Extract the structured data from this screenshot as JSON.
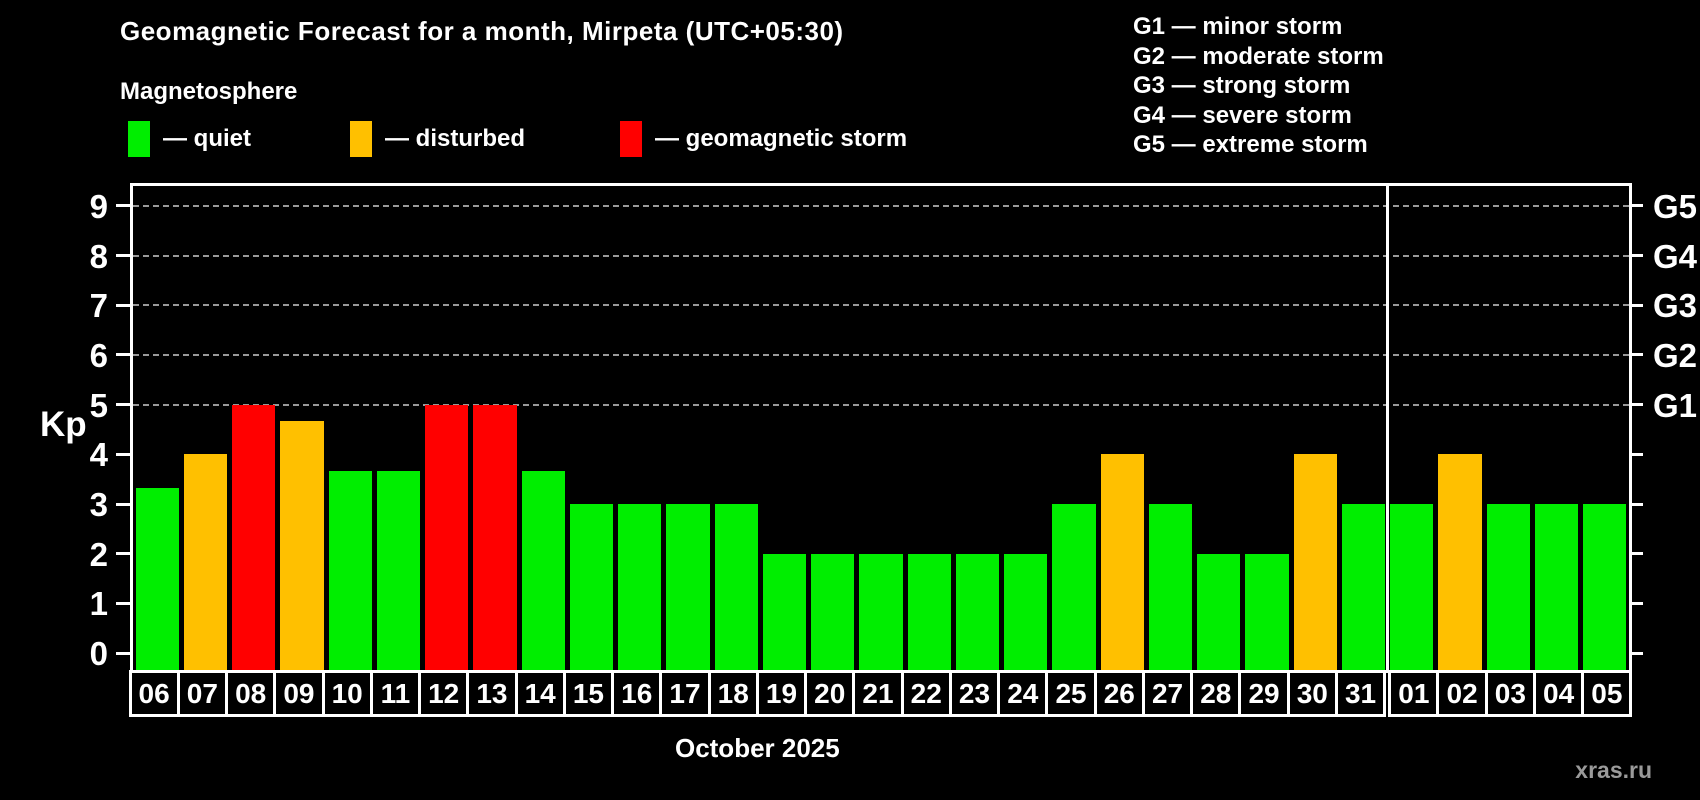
{
  "title": "Geomagnetic Forecast for a month, Mirpeta (UTC+05:30)",
  "subtitle": "Magnetosphere",
  "legend": [
    {
      "status": "quiet",
      "label": "— quiet"
    },
    {
      "status": "disturbed",
      "label": "— disturbed"
    },
    {
      "status": "storm",
      "label": "— geomagnetic storm"
    }
  ],
  "g_legend": [
    "G1 — minor storm",
    "G2 — moderate storm",
    "G3 — strong storm",
    "G4 — severe storm",
    "G5 — extreme storm"
  ],
  "colors": {
    "quiet": "#00ee00",
    "disturbed": "#ffc000",
    "storm": "#ff0000",
    "background": "#000000",
    "text": "#ffffff",
    "grid": "#999999",
    "watermark": "#9a9a9a"
  },
  "watermark": "xras.ru",
  "chart_data": {
    "type": "bar",
    "title": "Geomagnetic Forecast for a month, Mirpeta (UTC+05:30)",
    "xlabel": "October 2025",
    "ylabel": "Kp",
    "ylim": [
      -0.4,
      9.4
    ],
    "yticks": [
      0,
      1,
      2,
      3,
      4,
      5,
      6,
      7,
      8,
      9
    ],
    "gridlines_at": [
      5,
      6,
      7,
      8,
      9
    ],
    "grid": true,
    "right_axis_labels": [
      {
        "kp": 5,
        "label": "G1"
      },
      {
        "kp": 6,
        "label": "G2"
      },
      {
        "kp": 7,
        "label": "G3"
      },
      {
        "kp": 8,
        "label": "G4"
      },
      {
        "kp": 9,
        "label": "G5"
      }
    ],
    "month_boundary_after_index": 25,
    "bars": [
      {
        "day": "06",
        "kp": 3.33,
        "status": "quiet"
      },
      {
        "day": "07",
        "kp": 4.0,
        "status": "disturbed"
      },
      {
        "day": "08",
        "kp": 5.0,
        "status": "storm"
      },
      {
        "day": "09",
        "kp": 4.67,
        "status": "disturbed"
      },
      {
        "day": "10",
        "kp": 3.67,
        "status": "quiet"
      },
      {
        "day": "11",
        "kp": 3.67,
        "status": "quiet"
      },
      {
        "day": "12",
        "kp": 5.0,
        "status": "storm"
      },
      {
        "day": "13",
        "kp": 5.0,
        "status": "storm"
      },
      {
        "day": "14",
        "kp": 3.67,
        "status": "quiet"
      },
      {
        "day": "15",
        "kp": 3.0,
        "status": "quiet"
      },
      {
        "day": "16",
        "kp": 3.0,
        "status": "quiet"
      },
      {
        "day": "17",
        "kp": 3.0,
        "status": "quiet"
      },
      {
        "day": "18",
        "kp": 3.0,
        "status": "quiet"
      },
      {
        "day": "19",
        "kp": 2.0,
        "status": "quiet"
      },
      {
        "day": "20",
        "kp": 2.0,
        "status": "quiet"
      },
      {
        "day": "21",
        "kp": 2.0,
        "status": "quiet"
      },
      {
        "day": "22",
        "kp": 2.0,
        "status": "quiet"
      },
      {
        "day": "23",
        "kp": 2.0,
        "status": "quiet"
      },
      {
        "day": "24",
        "kp": 2.0,
        "status": "quiet"
      },
      {
        "day": "25",
        "kp": 3.0,
        "status": "quiet"
      },
      {
        "day": "26",
        "kp": 4.0,
        "status": "disturbed"
      },
      {
        "day": "27",
        "kp": 3.0,
        "status": "quiet"
      },
      {
        "day": "28",
        "kp": 2.0,
        "status": "quiet"
      },
      {
        "day": "29",
        "kp": 2.0,
        "status": "quiet"
      },
      {
        "day": "30",
        "kp": 4.0,
        "status": "disturbed"
      },
      {
        "day": "31",
        "kp": 3.0,
        "status": "quiet"
      },
      {
        "day": "01",
        "kp": 3.0,
        "status": "quiet"
      },
      {
        "day": "02",
        "kp": 4.0,
        "status": "disturbed"
      },
      {
        "day": "03",
        "kp": 3.0,
        "status": "quiet"
      },
      {
        "day": "04",
        "kp": 3.0,
        "status": "quiet"
      },
      {
        "day": "05",
        "kp": 3.0,
        "status": "quiet"
      }
    ]
  }
}
